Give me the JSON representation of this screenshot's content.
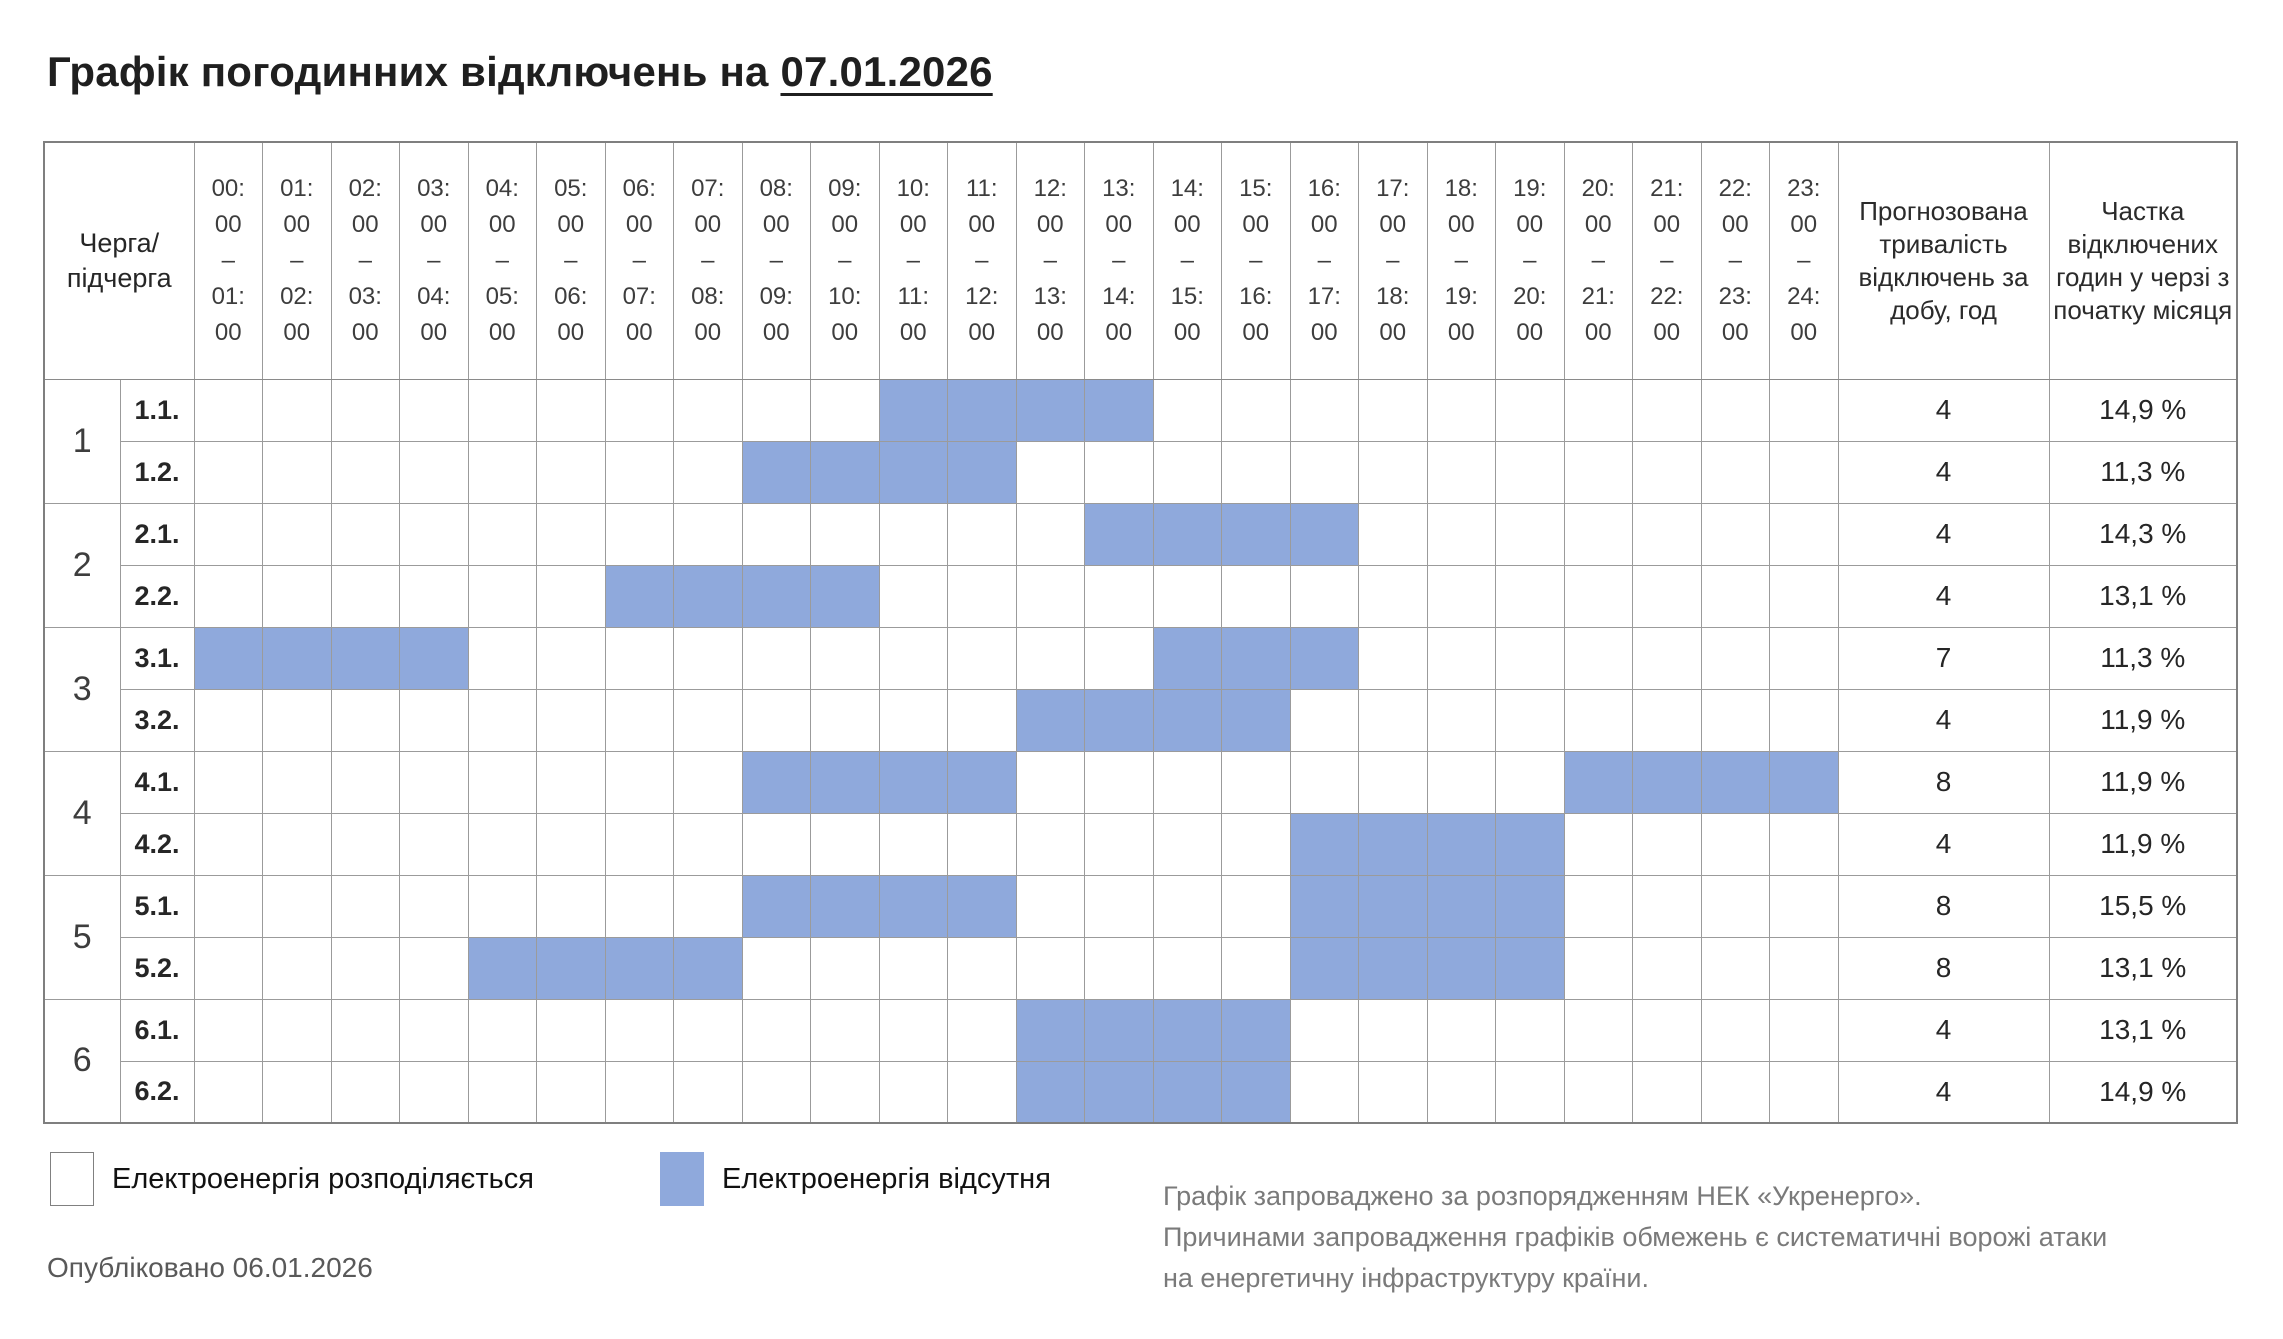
{
  "title": {
    "prefix": "Графік погодинних відключень на ",
    "date": "07.01.2026"
  },
  "table": {
    "corner_header_lines": [
      "Черга/",
      "підчерга"
    ],
    "duration_header": "Прогнозована тривалість відключень за добу, год",
    "share_header": "Частка відключених годин у черзі з початку місяця"
  },
  "chart_data": {
    "type": "heatmap",
    "title": "Графік погодинних відключень на 07.01.2026",
    "x_labels_hours": [
      "00:00–01:00",
      "01:00–02:00",
      "02:00–03:00",
      "03:00–04:00",
      "04:00–05:00",
      "05:00–06:00",
      "06:00–07:00",
      "07:00–08:00",
      "08:00–09:00",
      "09:00–10:00",
      "10:00–11:00",
      "11:00–12:00",
      "12:00–13:00",
      "13:00–14:00",
      "14:00–15:00",
      "15:00–16:00",
      "16:00–17:00",
      "17:00–18:00",
      "18:00–19:00",
      "19:00–20:00",
      "20:00–21:00",
      "21:00–22:00",
      "22:00–23:00",
      "23:00–24:00"
    ],
    "cell_encoding": {
      "outage": "Електроенергія відсутня",
      "power_on": "Електроенергія розподіляється"
    },
    "rows": [
      {
        "queue": "1",
        "subqueue": "1.1.",
        "outage_hours": [
          10,
          11,
          12,
          13
        ],
        "duration_hours": 4,
        "share": "14,9 %"
      },
      {
        "queue": "1",
        "subqueue": "1.2.",
        "outage_hours": [
          8,
          9,
          10,
          11
        ],
        "duration_hours": 4,
        "share": "11,3 %"
      },
      {
        "queue": "2",
        "subqueue": "2.1.",
        "outage_hours": [
          13,
          14,
          15,
          16
        ],
        "duration_hours": 4,
        "share": "14,3 %"
      },
      {
        "queue": "2",
        "subqueue": "2.2.",
        "outage_hours": [
          6,
          7,
          8,
          9
        ],
        "duration_hours": 4,
        "share": "13,1 %"
      },
      {
        "queue": "3",
        "subqueue": "3.1.",
        "outage_hours": [
          0,
          1,
          2,
          3,
          14,
          15,
          16
        ],
        "duration_hours": 7,
        "share": "11,3 %"
      },
      {
        "queue": "3",
        "subqueue": "3.2.",
        "outage_hours": [
          12,
          13,
          14,
          15
        ],
        "duration_hours": 4,
        "share": "11,9 %"
      },
      {
        "queue": "4",
        "subqueue": "4.1.",
        "outage_hours": [
          8,
          9,
          10,
          11,
          20,
          21,
          22,
          23
        ],
        "duration_hours": 8,
        "share": "11,9 %"
      },
      {
        "queue": "4",
        "subqueue": "4.2.",
        "outage_hours": [
          16,
          17,
          18,
          19
        ],
        "duration_hours": 4,
        "share": "11,9 %"
      },
      {
        "queue": "5",
        "subqueue": "5.1.",
        "outage_hours": [
          8,
          9,
          10,
          11,
          16,
          17,
          18,
          19
        ],
        "duration_hours": 8,
        "share": "15,5 %"
      },
      {
        "queue": "5",
        "subqueue": "5.2.",
        "outage_hours": [
          4,
          5,
          6,
          7,
          16,
          17,
          18,
          19
        ],
        "duration_hours": 8,
        "share": "13,1 %"
      },
      {
        "queue": "6",
        "subqueue": "6.1.",
        "outage_hours": [
          12,
          13,
          14,
          15
        ],
        "duration_hours": 4,
        "share": "13,1 %"
      },
      {
        "queue": "6",
        "subqueue": "6.2.",
        "outage_hours": [
          12,
          13,
          14,
          15
        ],
        "duration_hours": 4,
        "share": "14,9 %"
      }
    ]
  },
  "legend": {
    "power_on": {
      "label": "Електроенергія розподіляється",
      "swatch": "#ffffff"
    },
    "power_off": {
      "label": "Електроенергія відсутня",
      "swatch": "#8fa9dc"
    }
  },
  "published": "Опубліковано 06.01.2026",
  "note_lines": [
    "Графік запроваджено за розпорядженням НЕК «Укренерго».",
    "Причинами запровадження графіків обмежень є систематичні ворожі атаки",
    "на енергетичну інфраструктуру країни."
  ],
  "colors": {
    "outage_fill": "#8fa9dc",
    "grid_line": "#9b9b9b",
    "outer_border": "#7f7f7f",
    "published_text": "#595959",
    "note_text": "#7a7a7a"
  }
}
